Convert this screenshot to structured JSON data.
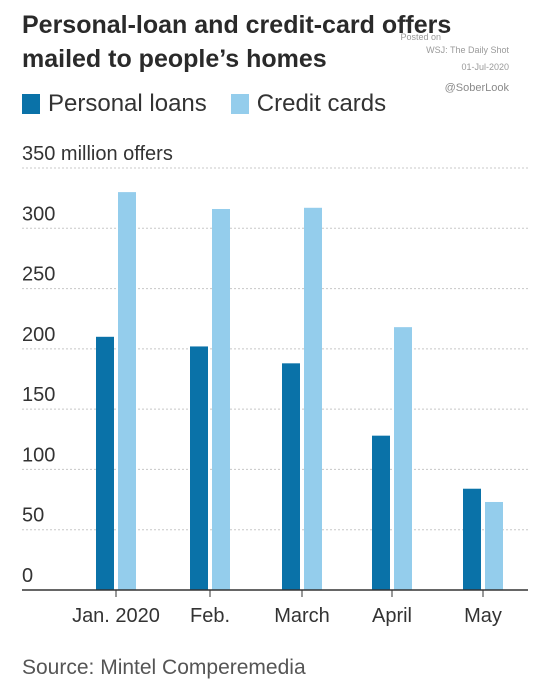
{
  "title": "Personal-loan and credit-card offers mailed to people’s homes",
  "watermark": {
    "posted": "Posted on",
    "source": "WSJ: The Daily Shot",
    "date": "01-Jul-2020",
    "handle": "@SoberLook"
  },
  "source": "Source: Mintel Comperemedia",
  "colors": {
    "personal_loans": "#0a72a8",
    "credit_cards": "#94cdec",
    "grid": "#c8c8c8",
    "axis": "#333333"
  },
  "chart_data": {
    "type": "bar",
    "title": "Personal-loan and credit-card offers mailed to people’s homes",
    "ylabel": "350 million offers",
    "categories": [
      "Jan. 2020",
      "Feb.",
      "March",
      "April",
      "May"
    ],
    "series": [
      {
        "name": "Personal loans",
        "values": [
          210,
          202,
          188,
          128,
          84
        ]
      },
      {
        "name": "Credit cards",
        "values": [
          330,
          316,
          317,
          218,
          73
        ]
      }
    ],
    "yticks": [
      "0",
      "50",
      "100",
      "150",
      "200",
      "250",
      "300",
      "350 million offers"
    ],
    "ylim": [
      0,
      350
    ],
    "grid": true,
    "legend": "top-left"
  }
}
